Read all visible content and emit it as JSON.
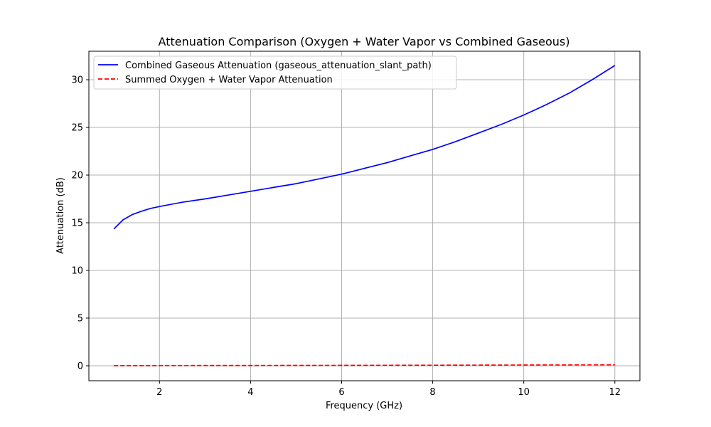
{
  "chart_data": {
    "type": "line",
    "title": "Attenuation Comparison (Oxygen + Water Vapor vs Combined Gaseous)",
    "xlabel": "Frequency (GHz)",
    "ylabel": "Attenuation (dB)",
    "xlim": [
      0.45,
      12.55
    ],
    "ylim": [
      -1.57,
      32.99
    ],
    "xticks": [
      2,
      4,
      6,
      8,
      10,
      12
    ],
    "yticks": [
      0,
      5,
      10,
      15,
      20,
      25,
      30
    ],
    "grid": true,
    "legend_position": "top-left",
    "series": [
      {
        "name": "Combined Gaseous Attenuation (gaseous_attenuation_slant_path)",
        "color": "#0000ff",
        "style": "solid",
        "x": [
          1.0,
          1.2,
          1.4,
          1.6,
          1.8,
          2.0,
          2.5,
          3.0,
          3.5,
          4.0,
          4.5,
          5.0,
          5.5,
          6.0,
          6.5,
          7.0,
          7.5,
          8.0,
          8.5,
          9.0,
          9.5,
          10.0,
          10.5,
          11.0,
          11.5,
          12.0
        ],
        "y": [
          14.35,
          15.3,
          15.85,
          16.2,
          16.5,
          16.7,
          17.15,
          17.5,
          17.9,
          18.3,
          18.7,
          19.1,
          19.6,
          20.1,
          20.7,
          21.3,
          22.0,
          22.7,
          23.5,
          24.4,
          25.3,
          26.3,
          27.4,
          28.6,
          30.0,
          31.5
        ]
      },
      {
        "name": "Summed Oxygen + Water Vapor Attenuation",
        "color": "#ff0000",
        "style": "dashed",
        "x": [
          1.0,
          2.0,
          4.0,
          6.0,
          8.0,
          10.0,
          12.0
        ],
        "y": [
          0.01,
          0.02,
          0.03,
          0.04,
          0.06,
          0.08,
          0.1
        ]
      }
    ]
  }
}
